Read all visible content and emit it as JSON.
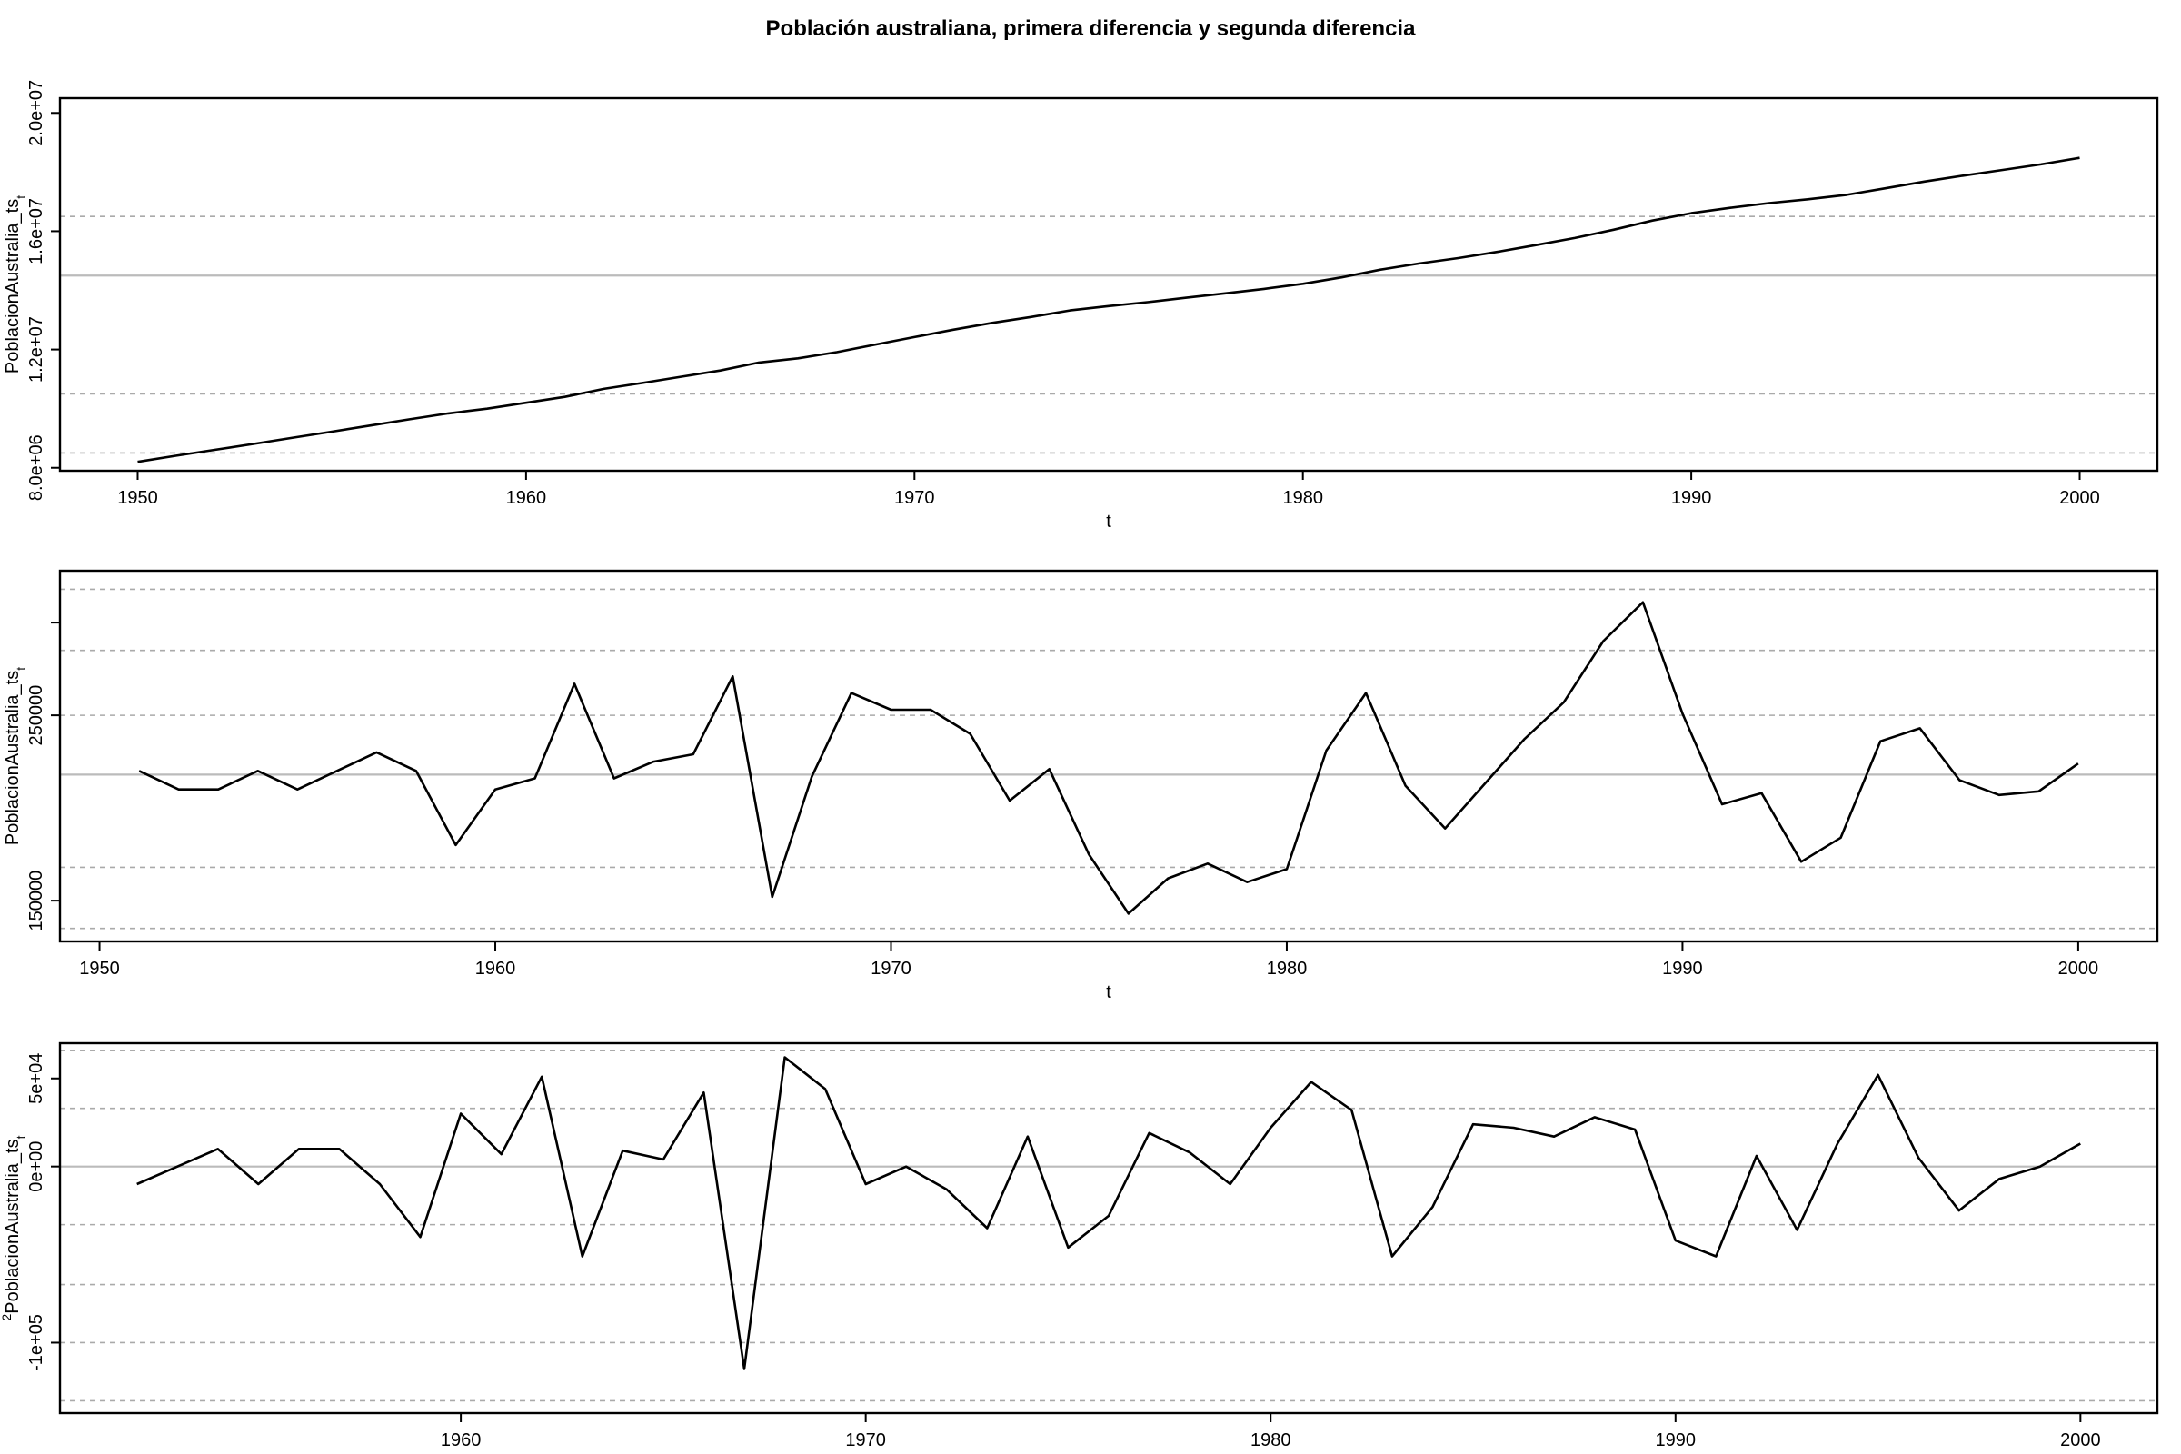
{
  "title": "Población australiana, primera diferencia y segunda diferencia",
  "colors": {
    "line": "#000000",
    "grid": "#aaaaaa",
    "zero": "#bbbbbb"
  },
  "chart_data": [
    {
      "type": "line",
      "xlabel": "t",
      "ylabel": "PoblacionAustralia_ts",
      "ylabel_sub": "t",
      "xlim": [
        1948,
        2002
      ],
      "ylim": [
        7900000.0,
        20500000.0
      ],
      "xticks": [
        1950,
        1960,
        1970,
        1980,
        1990,
        2000
      ],
      "xtick_labels": [
        "1950",
        "1960",
        "1970",
        "1980",
        "1990",
        "2000"
      ],
      "yticks": [
        8000000.0,
        12000000.0,
        16000000.0,
        20000000.0
      ],
      "ytick_labels": [
        "8.0e+06",
        "1.2e+07",
        "1.6e+07",
        "2.0e+07"
      ],
      "hlines_dashed": [
        8500000.0,
        10500000.0,
        16500000.0,
        20500000.0
      ],
      "hline_solid": 14500000.0,
      "x": [
        1950,
        1951,
        1952,
        1953,
        1954,
        1955,
        1956,
        1957,
        1958,
        1959,
        1960,
        1961,
        1962,
        1963,
        1964,
        1965,
        1966,
        1967,
        1968,
        1969,
        1970,
        1971,
        1972,
        1973,
        1974,
        1975,
        1976,
        1977,
        1978,
        1979,
        1980,
        1981,
        1982,
        1983,
        1984,
        1985,
        1986,
        1987,
        1988,
        1989,
        1990,
        1991,
        1992,
        1993,
        1994,
        1995,
        1996,
        1997,
        1998,
        1999,
        2000
      ],
      "values": [
        8200000,
        8410000,
        8610000,
        8810000,
        9020000,
        9220000,
        9430000,
        9640000,
        9840000,
        10000000,
        10200000,
        10400000,
        10670000,
        10870000,
        11080000,
        11290000,
        11560000,
        11700000,
        11910000,
        12170000,
        12420000,
        12670000,
        12900000,
        13100000,
        13320000,
        13470000,
        13600000,
        13750000,
        13900000,
        14050000,
        14220000,
        14440000,
        14700000,
        14910000,
        15090000,
        15300000,
        15530000,
        15770000,
        16050000,
        16360000,
        16610000,
        16790000,
        16950000,
        17080000,
        17230000,
        17450000,
        17680000,
        17880000,
        18070000,
        18260000,
        18480000
      ]
    },
    {
      "type": "line",
      "xlabel": "t",
      "ylabel": "PoblacionAustralia_ts",
      "ylabel_sub": "t",
      "xlim": [
        1949,
        2002
      ],
      "ylim": [
        128000,
        328000
      ],
      "xticks": [
        1950,
        1960,
        1970,
        1980,
        1990,
        2000
      ],
      "xtick_labels": [
        "1950",
        "1960",
        "1970",
        "1980",
        "1990",
        "2000"
      ],
      "yticks": [
        150000,
        250000
      ],
      "ytick_labels": [
        "150000",
        "250000"
      ],
      "yticks_unlabeled": [
        300000
      ],
      "hlines_dashed": [
        135000,
        168000,
        250000,
        285000,
        318000
      ],
      "hline_solid": 218000,
      "x": [
        1951,
        1952,
        1953,
        1954,
        1955,
        1956,
        1957,
        1958,
        1959,
        1960,
        1961,
        1962,
        1963,
        1964,
        1965,
        1966,
        1967,
        1968,
        1969,
        1970,
        1971,
        1972,
        1973,
        1974,
        1975,
        1976,
        1977,
        1978,
        1979,
        1980,
        1981,
        1982,
        1983,
        1984,
        1985,
        1986,
        1987,
        1988,
        1989,
        1990,
        1991,
        1992,
        1993,
        1994,
        1995,
        1996,
        1997,
        1998,
        1999,
        2000
      ],
      "values": [
        220000,
        210000,
        210000,
        220000,
        210000,
        220000,
        230000,
        220000,
        180000,
        210000,
        216000,
        267000,
        216000,
        225000,
        229000,
        271000,
        152000,
        217000,
        262000,
        253000,
        253000,
        240000,
        204000,
        221000,
        175000,
        143000,
        162000,
        170000,
        160000,
        167000,
        231000,
        262000,
        212000,
        189000,
        213000,
        237000,
        257000,
        290000,
        311000,
        251000,
        202000,
        208000,
        171000,
        184000,
        236000,
        243000,
        215000,
        207000,
        209000,
        224000
      ]
    },
    {
      "type": "line",
      "xlabel": "t",
      "ylabel": "PoblacionAustralia_ts",
      "ylabel_prefix": "2",
      "ylabel_sub": "t",
      "xlim": [
        1950.1,
        2001.9
      ],
      "ylim": [
        -140000,
        70000
      ],
      "xticks": [
        1960,
        1970,
        1980,
        1990,
        2000
      ],
      "xtick_labels": [
        "1960",
        "1970",
        "1980",
        "1990",
        "2000"
      ],
      "yticks": [
        -100000,
        0,
        50000
      ],
      "ytick_labels": [
        "-1e+05",
        "0e+00",
        "5e+04"
      ],
      "hlines_dashed": [
        -133000,
        -100000,
        -67000,
        -33000,
        33000,
        66000
      ],
      "hline_solid": 0,
      "x": [
        1952,
        1953,
        1954,
        1955,
        1956,
        1957,
        1958,
        1959,
        1960,
        1961,
        1962,
        1963,
        1964,
        1965,
        1966,
        1967,
        1968,
        1969,
        1970,
        1971,
        1972,
        1973,
        1974,
        1975,
        1976,
        1977,
        1978,
        1979,
        1980,
        1981,
        1982,
        1983,
        1984,
        1985,
        1986,
        1987,
        1988,
        1989,
        1990,
        1991,
        1992,
        1993,
        1994,
        1995,
        1996,
        1997,
        1998,
        1999,
        2000
      ],
      "values": [
        -10000,
        0,
        10000,
        -10000,
        10000,
        10000,
        -10000,
        -40000,
        30000,
        7000,
        51000,
        -51000,
        9000,
        4000,
        42000,
        -115000,
        62000,
        44000,
        -10000,
        0,
        -13000,
        -35000,
        17000,
        -46000,
        -28000,
        19000,
        8000,
        -10000,
        22000,
        48000,
        32000,
        -51000,
        -23000,
        24000,
        22000,
        17000,
        28000,
        21000,
        -42000,
        -51000,
        6000,
        -36000,
        13000,
        52000,
        5000,
        -25000,
        -7000,
        0,
        13000
      ]
    }
  ]
}
